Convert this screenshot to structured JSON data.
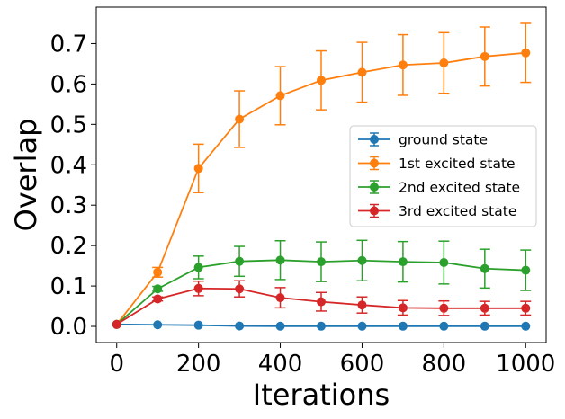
{
  "chart_data": {
    "type": "line",
    "title": "",
    "xlabel": "Iterations",
    "ylabel": "Overlap",
    "xlim": [
      -50,
      1050
    ],
    "ylim": [
      -0.04,
      0.79
    ],
    "xticks": [
      0,
      200,
      400,
      600,
      800,
      1000
    ],
    "xtick_labels": [
      "0",
      "200",
      "400",
      "600",
      "800",
      "1000"
    ],
    "yticks": [
      0.0,
      0.1,
      0.2,
      0.3,
      0.4,
      0.5,
      0.6,
      0.7
    ],
    "ytick_labels": [
      "0.0",
      "0.1",
      "0.2",
      "0.3",
      "0.4",
      "0.5",
      "0.6",
      "0.7"
    ],
    "grid": false,
    "legend_position": "center-right",
    "x": [
      0,
      100,
      200,
      300,
      400,
      500,
      600,
      700,
      800,
      900,
      1000
    ],
    "series": [
      {
        "name": "ground state",
        "color": "#1f77b4",
        "values": [
          0.005,
          0.004,
          0.003,
          0.001,
          0.0005,
          0.0005,
          0.0005,
          0.0005,
          0.0005,
          0.0005,
          0.0005
        ],
        "errors": [
          0,
          0,
          0,
          0,
          0,
          0,
          0,
          0,
          0,
          0,
          0
        ]
      },
      {
        "name": "1st excited state",
        "color": "#ff7f0e",
        "values": [
          0.005,
          0.134,
          0.391,
          0.513,
          0.571,
          0.609,
          0.629,
          0.647,
          0.652,
          0.668,
          0.677
        ],
        "errors": [
          0,
          0.012,
          0.06,
          0.07,
          0.072,
          0.073,
          0.074,
          0.075,
          0.075,
          0.073,
          0.073
        ]
      },
      {
        "name": "2nd excited state",
        "color": "#2ca02c",
        "values": [
          0.005,
          0.093,
          0.146,
          0.161,
          0.164,
          0.16,
          0.163,
          0.16,
          0.158,
          0.143,
          0.139
        ],
        "errors": [
          0,
          0.006,
          0.028,
          0.037,
          0.048,
          0.049,
          0.05,
          0.05,
          0.053,
          0.048,
          0.05
        ]
      },
      {
        "name": "3rd excited state",
        "color": "#d62728",
        "values": [
          0.005,
          0.068,
          0.094,
          0.093,
          0.071,
          0.061,
          0.053,
          0.046,
          0.045,
          0.045,
          0.045
        ],
        "errors": [
          0,
          0.005,
          0.018,
          0.02,
          0.025,
          0.023,
          0.02,
          0.018,
          0.018,
          0.017,
          0.017
        ]
      }
    ]
  }
}
